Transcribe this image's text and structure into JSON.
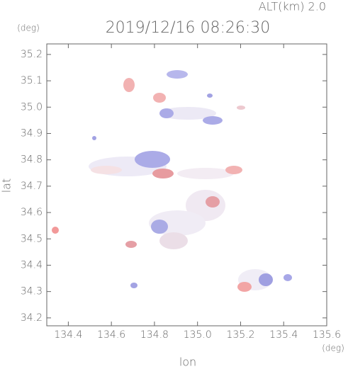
{
  "chart_data": {
    "type": "heatmap",
    "title": "2019/12/16 08:26:30",
    "subtitle": "ALT(km) 2.0",
    "x_label": "lon",
    "y_label": "lat",
    "x_unit": "(deg)",
    "y_unit": "(deg)",
    "xlim": [
      134.3,
      135.6
    ],
    "xticks": [
      134.4,
      134.6,
      134.8,
      {
        "value": 135,
        "label": "135.0"
      },
      135.2,
      135.4,
      135.6
    ],
    "ylim": [
      34.17,
      35.24
    ],
    "yticks": [
      34.2,
      34.3,
      34.4,
      34.5,
      34.6,
      34.7,
      34.8,
      34.9,
      {
        "value": 35,
        "label": "35.0"
      },
      35.1,
      35.2
    ]
  }
}
